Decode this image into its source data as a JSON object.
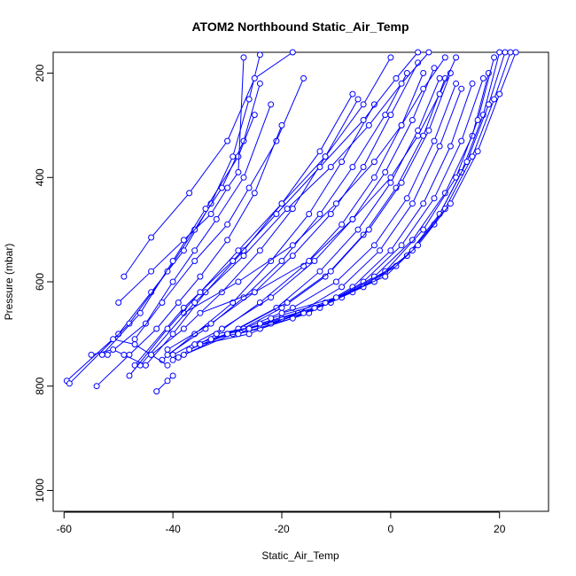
{
  "chart_data": {
    "type": "line",
    "title": "ATOM2 Northbound Static_Air_Temp",
    "xlabel": "Static_Air_Temp",
    "ylabel": "Pressure (mbar)",
    "xlim": [
      -62,
      29
    ],
    "ylim": [
      1040,
      160
    ],
    "y_inverted": true,
    "x_ticks": [
      -60,
      -40,
      -20,
      0,
      20
    ],
    "x_tick_labels": [
      "-60",
      "-40",
      "-20",
      "0",
      "20"
    ],
    "y_ticks": [
      200,
      400,
      600,
      800,
      1000
    ],
    "y_tick_labels": [
      "200",
      "400",
      "600",
      "800",
      "1000"
    ],
    "grid": false,
    "legend": "none",
    "series_color": "#0000ff",
    "marker": "open-circle",
    "series": [
      {
        "x": [
          -59.5,
          -50,
          -44,
          -38,
          -33,
          -29,
          -26,
          -24
        ],
        "y": [
          790,
          700,
          620,
          540,
          450,
          360,
          250,
          165
        ]
      },
      {
        "x": [
          -59,
          -48,
          -41,
          -36,
          -31,
          -27,
          -24
        ],
        "y": [
          795,
          680,
          580,
          500,
          420,
          330,
          220
        ]
      },
      {
        "x": [
          -53,
          -46,
          -40,
          -34,
          -28,
          -25
        ],
        "y": [
          740,
          660,
          560,
          460,
          360,
          280
        ]
      },
      {
        "x": [
          -50,
          -44,
          -38,
          -33,
          -30,
          -28,
          -27
        ],
        "y": [
          640,
          580,
          520,
          470,
          420,
          390,
          170
        ]
      },
      {
        "x": [
          -52,
          -45,
          -40,
          -36,
          -32,
          -27,
          -22
        ],
        "y": [
          740,
          680,
          600,
          540,
          480,
          400,
          260
        ]
      },
      {
        "x": [
          -49,
          -44,
          -37,
          -30,
          -25,
          -18
        ],
        "y": [
          590,
          515,
          430,
          330,
          210,
          160
        ]
      },
      {
        "x": [
          -47,
          -42,
          -36,
          -30,
          -26,
          -21,
          -16
        ],
        "y": [
          710,
          640,
          560,
          490,
          420,
          330,
          210
        ]
      },
      {
        "x": [
          -45,
          -40,
          -34,
          -27,
          -20,
          -13,
          -7
        ],
        "y": [
          760,
          700,
          620,
          540,
          450,
          350,
          240
        ]
      },
      {
        "x": [
          -44,
          -38,
          -31,
          -24,
          -18,
          -12,
          -6
        ],
        "y": [
          740,
          690,
          620,
          540,
          460,
          360,
          250
        ]
      },
      {
        "x": [
          -42,
          -36,
          -29,
          -22,
          -15,
          -9,
          -3
        ],
        "y": [
          750,
          700,
          640,
          560,
          470,
          370,
          260
        ]
      },
      {
        "x": [
          -41,
          -34,
          -27,
          -20,
          -13,
          -7,
          -1,
          3
        ],
        "y": [
          740,
          690,
          630,
          560,
          470,
          380,
          280,
          200
        ]
      },
      {
        "x": [
          -41,
          -33,
          -25,
          -18,
          -11,
          -5,
          0,
          5
        ],
        "y": [
          730,
          680,
          620,
          550,
          470,
          380,
          280,
          180
        ]
      },
      {
        "x": [
          -40,
          -32,
          -24,
          -16,
          -9,
          -3,
          2,
          6
        ],
        "y": [
          750,
          700,
          640,
          570,
          490,
          400,
          300,
          200
        ]
      },
      {
        "x": [
          -40,
          -31,
          -22,
          -14,
          -7,
          -1,
          4,
          8
        ],
        "y": [
          740,
          690,
          630,
          560,
          480,
          390,
          290,
          190
        ]
      },
      {
        "x": [
          -39,
          -30,
          -21,
          -13,
          -6,
          0,
          5,
          9
        ],
        "y": [
          745,
          700,
          650,
          580,
          500,
          410,
          310,
          210
        ]
      },
      {
        "x": [
          -38,
          -29,
          -20,
          -12,
          -5,
          1,
          6,
          10
        ],
        "y": [
          740,
          700,
          650,
          590,
          510,
          420,
          320,
          210
        ]
      },
      {
        "x": [
          -37,
          -28,
          -19,
          -11,
          -4,
          2,
          7,
          11
        ],
        "y": [
          730,
          690,
          640,
          580,
          500,
          410,
          310,
          200
        ]
      },
      {
        "x": [
          -36,
          -27,
          -18,
          -10,
          -3,
          3,
          8,
          12
        ],
        "y": [
          720,
          690,
          650,
          600,
          530,
          440,
          330,
          220
        ]
      },
      {
        "x": [
          -35,
          -26,
          -17,
          -9,
          -2,
          4,
          9,
          13
        ],
        "y": [
          720,
          700,
          660,
          610,
          540,
          450,
          340,
          230
        ]
      },
      {
        "x": [
          -33,
          -24,
          -15,
          -7,
          0,
          6,
          11,
          15
        ],
        "y": [
          710,
          690,
          660,
          610,
          540,
          450,
          340,
          220
        ]
      },
      {
        "x": [
          -32,
          -22,
          -13,
          -5,
          2,
          8,
          13,
          17
        ],
        "y": [
          700,
          680,
          650,
          600,
          530,
          440,
          330,
          210
        ]
      },
      {
        "x": [
          -30,
          -20,
          -11,
          -3,
          4,
          10,
          15,
          18
        ],
        "y": [
          700,
          670,
          640,
          590,
          520,
          430,
          320,
          200
        ]
      },
      {
        "x": [
          -28,
          -18,
          -9,
          -1,
          6,
          12,
          16,
          19
        ],
        "y": [
          700,
          670,
          630,
          580,
          500,
          400,
          290,
          170
        ]
      },
      {
        "x": [
          -26,
          -16,
          -7,
          1,
          8,
          13,
          17,
          20
        ],
        "y": [
          690,
          660,
          620,
          570,
          490,
          390,
          280,
          160
        ]
      },
      {
        "x": [
          -24,
          -14,
          -5,
          3,
          9,
          14,
          18,
          21
        ],
        "y": [
          680,
          650,
          610,
          550,
          470,
          370,
          260,
          160
        ]
      },
      {
        "x": [
          -22,
          -12,
          -3,
          4,
          10,
          15,
          19,
          22
        ],
        "y": [
          670,
          640,
          600,
          540,
          460,
          360,
          250,
          160
        ]
      },
      {
        "x": [
          -20,
          -10,
          -1,
          5,
          11,
          16,
          20,
          23
        ],
        "y": [
          660,
          630,
          590,
          530,
          450,
          350,
          240,
          160
        ]
      },
      {
        "x": [
          -35,
          -25,
          -15,
          -7,
          0,
          5,
          9,
          12
        ],
        "y": [
          660,
          620,
          560,
          480,
          400,
          320,
          240,
          170
        ]
      },
      {
        "x": [
          -38,
          -28,
          -18,
          -10,
          -3,
          2,
          6,
          10
        ],
        "y": [
          660,
          600,
          530,
          450,
          370,
          300,
          230,
          170
        ]
      },
      {
        "x": [
          -47,
          -38,
          -29,
          -21,
          -13,
          -5,
          1,
          5
        ],
        "y": [
          760,
          650,
          560,
          470,
          380,
          290,
          210,
          160
        ]
      },
      {
        "x": [
          -46,
          -36,
          -27,
          -19,
          -11,
          -4,
          2,
          7
        ],
        "y": [
          760,
          640,
          550,
          460,
          380,
          300,
          220,
          160
        ]
      },
      {
        "x": [
          -48,
          -41,
          -35,
          -28,
          -20,
          -12,
          -5,
          0
        ],
        "y": [
          780,
          690,
          620,
          540,
          450,
          360,
          260,
          170
        ]
      },
      {
        "x": [
          -54,
          -48,
          -43,
          -39,
          -35,
          -30,
          -25,
          -20
        ],
        "y": [
          800,
          740,
          690,
          640,
          590,
          520,
          430,
          300
        ]
      },
      {
        "x": [
          -43,
          -41,
          -40
        ],
        "y": [
          810,
          790,
          780
        ]
      },
      {
        "x": [
          -51,
          -47,
          -44,
          -41
        ],
        "y": [
          710,
          720,
          740,
          760
        ]
      },
      {
        "x": [
          -55,
          -51,
          -49,
          -45
        ],
        "y": [
          740,
          730,
          740,
          760
        ]
      }
    ]
  }
}
